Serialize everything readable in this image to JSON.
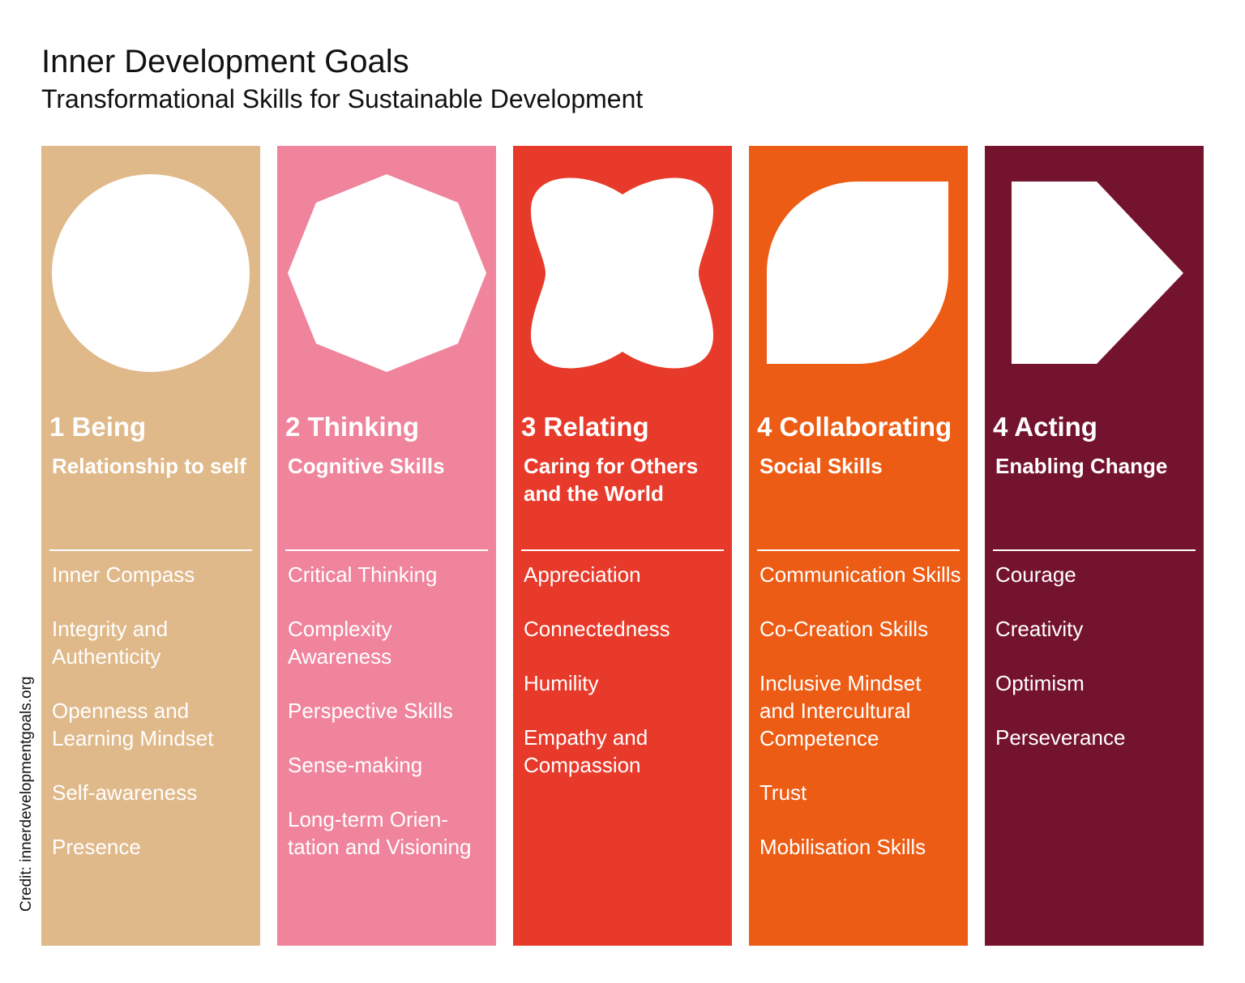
{
  "title": "Inner Development Goals",
  "subtitle": "Transformational Skills for Sustainable Development",
  "credit": "Credit: innerdevelopmentgoals.org",
  "columns": [
    {
      "heading": "1 Being",
      "subheading": "Relationship to self",
      "color": "#e0b98a",
      "shape": "circle",
      "items": [
        "Inner Compass",
        "Integrity and Authenticity",
        "Openness and Learning Mindset",
        "Self-awareness",
        "Presence"
      ]
    },
    {
      "heading": "2 Thinking",
      "subheading": "Cognitive Skills",
      "color": "#ef849c",
      "shape": "octagon",
      "items": [
        "Critical Thinking",
        "Complexity Awareness",
        "Perspective Skills",
        "Sense-making",
        "Long-term Orien-tation and Visioning"
      ]
    },
    {
      "heading": "3 Relating",
      "subheading": "Caring for Others and the World",
      "color": "#e83a2a",
      "shape": "four-lobed-blob",
      "items": [
        "Appreciation",
        "Connectedness",
        "Humility",
        "Empathy and Compassion"
      ]
    },
    {
      "heading": "4 Collaborating",
      "subheading": "Social Skills",
      "color": "#ed5c14",
      "shape": "leaf",
      "items": [
        "Communication Skills",
        "Co-Creation Skills",
        "Inclusive Mindset and Intercultural Competence",
        "Trust",
        "Mobilisation Skills"
      ]
    },
    {
      "heading": "4 Acting",
      "subheading": "Enabling Change",
      "color": "#74132d",
      "shape": "arrow-pentagon",
      "items": [
        "Courage",
        "Creativity",
        "Optimism",
        "Perseverance"
      ]
    }
  ]
}
